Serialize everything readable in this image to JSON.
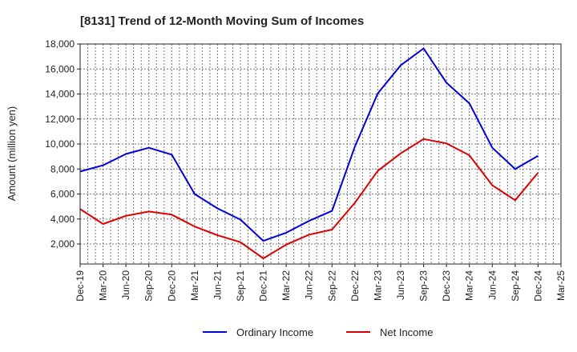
{
  "chart_data": {
    "type": "line",
    "title": "[8131]  Trend of 12-Month Moving Sum of Incomes",
    "xlabel": "",
    "ylabel": "Amount (million yen)",
    "ylim": [
      400,
      18000
    ],
    "yticks": [
      2000,
      4000,
      6000,
      8000,
      10000,
      12000,
      14000,
      16000,
      18000
    ],
    "ytick_labels": [
      "2,000",
      "4,000",
      "6,000",
      "8,000",
      "10,000",
      "12,000",
      "14,000",
      "16,000",
      "18,000"
    ],
    "categories": [
      "Dec-19",
      "Mar-20",
      "Jun-20",
      "Sep-20",
      "Dec-20",
      "Mar-21",
      "Jun-21",
      "Sep-21",
      "Dec-21",
      "Mar-22",
      "Jun-22",
      "Sep-22",
      "Dec-22",
      "Mar-23",
      "Jun-23",
      "Sep-23",
      "Dec-23",
      "Mar-24",
      "Jun-24",
      "Sep-24",
      "Dec-24",
      "Mar-25"
    ],
    "grid": true,
    "legend_position": "bottom-center",
    "series": [
      {
        "name": "Ordinary Income",
        "color": "#0000dd",
        "values": [
          7800,
          8300,
          9200,
          9700,
          9150,
          6000,
          4850,
          3950,
          2250,
          2900,
          3850,
          4650,
          9800,
          14050,
          16300,
          17650,
          14900,
          13250,
          9700,
          8000,
          9050,
          null
        ]
      },
      {
        "name": "Net Income",
        "color": "#dd0000",
        "values": [
          4800,
          3600,
          4250,
          4600,
          4350,
          3400,
          2700,
          2150,
          850,
          1950,
          2750,
          3150,
          5300,
          7850,
          9250,
          10400,
          10050,
          9100,
          6700,
          5500,
          7700,
          null
        ]
      }
    ]
  }
}
